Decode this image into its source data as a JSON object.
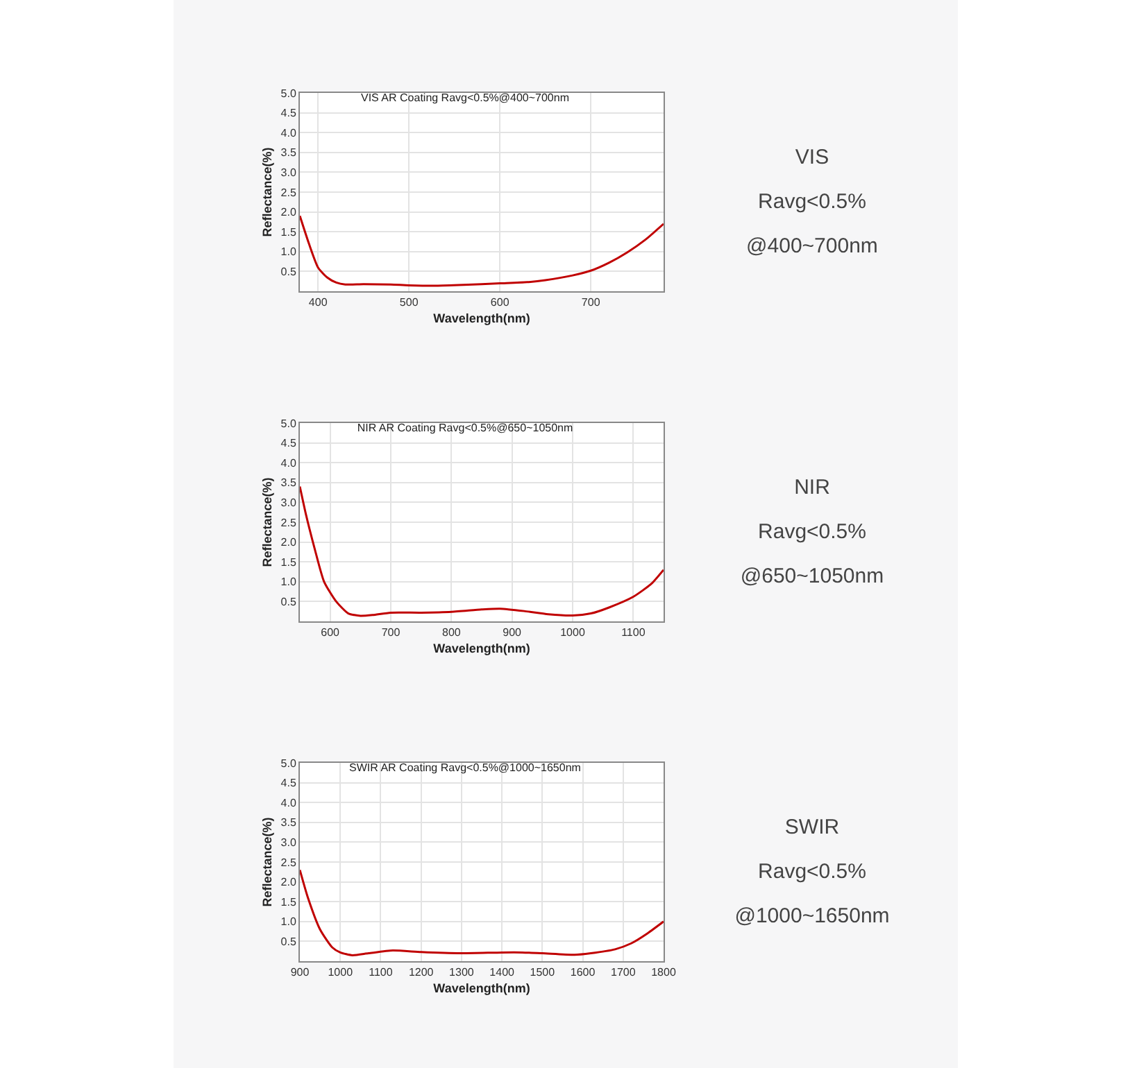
{
  "chart_data": [
    {
      "type": "line",
      "title": "VIS AR Coating Ravg<0.5%@400~700nm",
      "xlabel": "Wavelength(nm)",
      "ylabel": "Reflectance(%)",
      "xlim": [
        380,
        780
      ],
      "xticks": [
        400,
        500,
        600,
        700
      ],
      "ylim": [
        0,
        5
      ],
      "yticks": [
        0.5,
        {
          "value": 1,
          "label": "1.0"
        },
        1.5,
        {
          "value": 2,
          "label": "2.0"
        },
        2.5,
        {
          "value": 3,
          "label": "3.0"
        },
        3.5,
        {
          "value": 4,
          "label": "4.0"
        },
        4.5,
        {
          "value": 5,
          "label": "5.0"
        }
      ],
      "grid": true,
      "marker": "none",
      "line_style": "solid",
      "series": [
        {
          "color": "#c00000",
          "x": [
            380,
            390,
            400,
            410,
            420,
            430,
            450,
            480,
            500,
            530,
            560,
            600,
            630,
            650,
            680,
            700,
            720,
            740,
            760,
            780
          ],
          "values": [
            1.9,
            1.2,
            0.6,
            0.35,
            0.22,
            0.17,
            0.18,
            0.17,
            0.15,
            0.14,
            0.16,
            0.2,
            0.23,
            0.28,
            0.4,
            0.52,
            0.72,
            0.98,
            1.3,
            1.7
          ]
        }
      ]
    },
    {
      "type": "other",
      "title": "VIS",
      "annotations": [
        "Ravg<0.5%",
        "@400~700nm"
      ]
    },
    {
      "type": "line",
      "title": "NIR AR Coating Ravg<0.5%@650~1050nm",
      "xlabel": "Wavelength(nm)",
      "ylabel": "Reflectance(%)",
      "xlim": [
        550,
        1150
      ],
      "xticks": [
        600,
        700,
        800,
        900,
        1000,
        1100
      ],
      "ylim": [
        0,
        5
      ],
      "yticks": [
        0.5,
        {
          "value": 1,
          "label": "1.0"
        },
        1.5,
        {
          "value": 2,
          "label": "2.0"
        },
        2.5,
        {
          "value": 3,
          "label": "3.0"
        },
        3.5,
        {
          "value": 4,
          "label": "4.0"
        },
        4.5,
        {
          "value": 5,
          "label": "5.0"
        }
      ],
      "grid": true,
      "marker": "none",
      "line_style": "solid",
      "series": [
        {
          "color": "#c00000",
          "x": [
            550,
            560,
            575,
            590,
            610,
            630,
            650,
            670,
            700,
            750,
            800,
            850,
            880,
            920,
            960,
            1000,
            1030,
            1060,
            1100,
            1130,
            1150
          ],
          "values": [
            3.4,
            2.7,
            1.8,
            1.0,
            0.5,
            0.2,
            0.14,
            0.16,
            0.22,
            0.22,
            0.24,
            0.3,
            0.32,
            0.26,
            0.18,
            0.15,
            0.2,
            0.35,
            0.62,
            0.95,
            1.3
          ]
        }
      ]
    },
    {
      "type": "other",
      "title": "NIR",
      "annotations": [
        "Ravg<0.5%",
        "@650~1050nm"
      ]
    },
    {
      "type": "line",
      "title": "SWIR AR Coating Ravg<0.5%@1000~1650nm",
      "xlabel": "Wavelength(nm)",
      "ylabel": "Reflectance(%)",
      "xlim": [
        900,
        1800
      ],
      "xticks": [
        900,
        1000,
        1100,
        1200,
        1300,
        1400,
        1500,
        1600,
        1700,
        1800
      ],
      "ylim": [
        0,
        5
      ],
      "yticks": [
        0.5,
        {
          "value": 1,
          "label": "1.0"
        },
        1.5,
        {
          "value": 2,
          "label": "2.0"
        },
        2.5,
        {
          "value": 3,
          "label": "3.0"
        },
        3.5,
        {
          "value": 4,
          "label": "4.0"
        },
        4.5,
        {
          "value": 5,
          "label": "5.0"
        }
      ],
      "grid": true,
      "marker": "none",
      "line_style": "solid",
      "series": [
        {
          "color": "#c00000",
          "x": [
            900,
            920,
            950,
            980,
            1000,
            1030,
            1070,
            1130,
            1200,
            1300,
            1400,
            1450,
            1500,
            1580,
            1620,
            1680,
            1720,
            1760,
            1800
          ],
          "values": [
            2.3,
            1.6,
            0.8,
            0.35,
            0.22,
            0.15,
            0.2,
            0.27,
            0.23,
            0.2,
            0.22,
            0.22,
            0.2,
            0.16,
            0.2,
            0.3,
            0.45,
            0.7,
            1.0
          ]
        }
      ]
    },
    {
      "type": "other",
      "title": "SWIR",
      "annotations": [
        "Ravg<0.5%",
        "@1000~1650nm"
      ]
    }
  ]
}
